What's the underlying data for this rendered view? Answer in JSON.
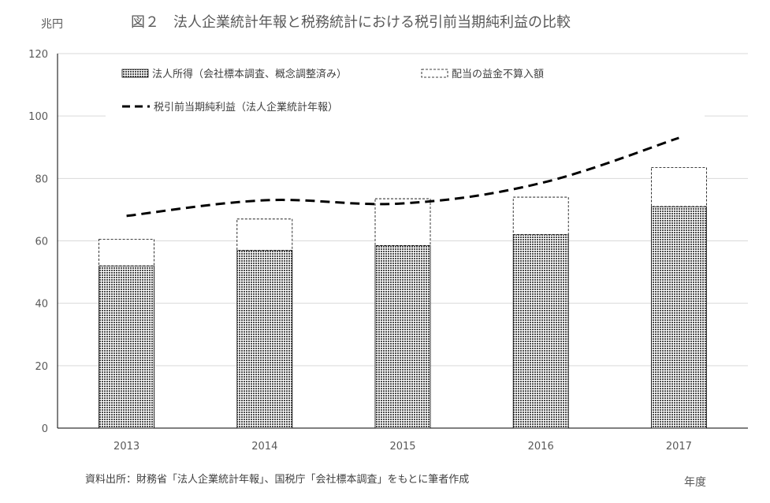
{
  "chart_data": {
    "type": "bar",
    "title": "図２　法人企業統計年報と税務統計における税引前当期純利益の比較",
    "ylabel": "兆円",
    "xlabel": "年度",
    "source_note": "資料出所：財務省「法人企業統計年報」、国税庁「会社標本調査」をもとに筆者作成",
    "ylim": [
      0,
      120
    ],
    "yticks": [
      0,
      20,
      40,
      60,
      80,
      100,
      120
    ],
    "grid": true,
    "legend_position": "top",
    "categories": [
      "2013",
      "2014",
      "2015",
      "2016",
      "2017"
    ],
    "series": [
      {
        "name": "法人所得（会社標本調査、概念調整済み）",
        "kind": "stacked-bar",
        "fill": "#555555",
        "pattern": "dotted",
        "values": [
          52,
          57,
          58.5,
          62,
          71
        ]
      },
      {
        "name": "配当の益金不算入額",
        "kind": "stacked-bar",
        "fill": "#ffffff",
        "border": "dashed",
        "values": [
          8.5,
          10,
          15,
          12,
          12.5
        ]
      },
      {
        "name": "税引前当期純利益（法人企業統計年報）",
        "kind": "line",
        "style": "dashed",
        "color": "#000000",
        "values": [
          68,
          73,
          72,
          78.5,
          93
        ]
      }
    ],
    "colors": {
      "grid": "#d9d9d9",
      "text": "#595959",
      "axis": "#000000"
    }
  }
}
